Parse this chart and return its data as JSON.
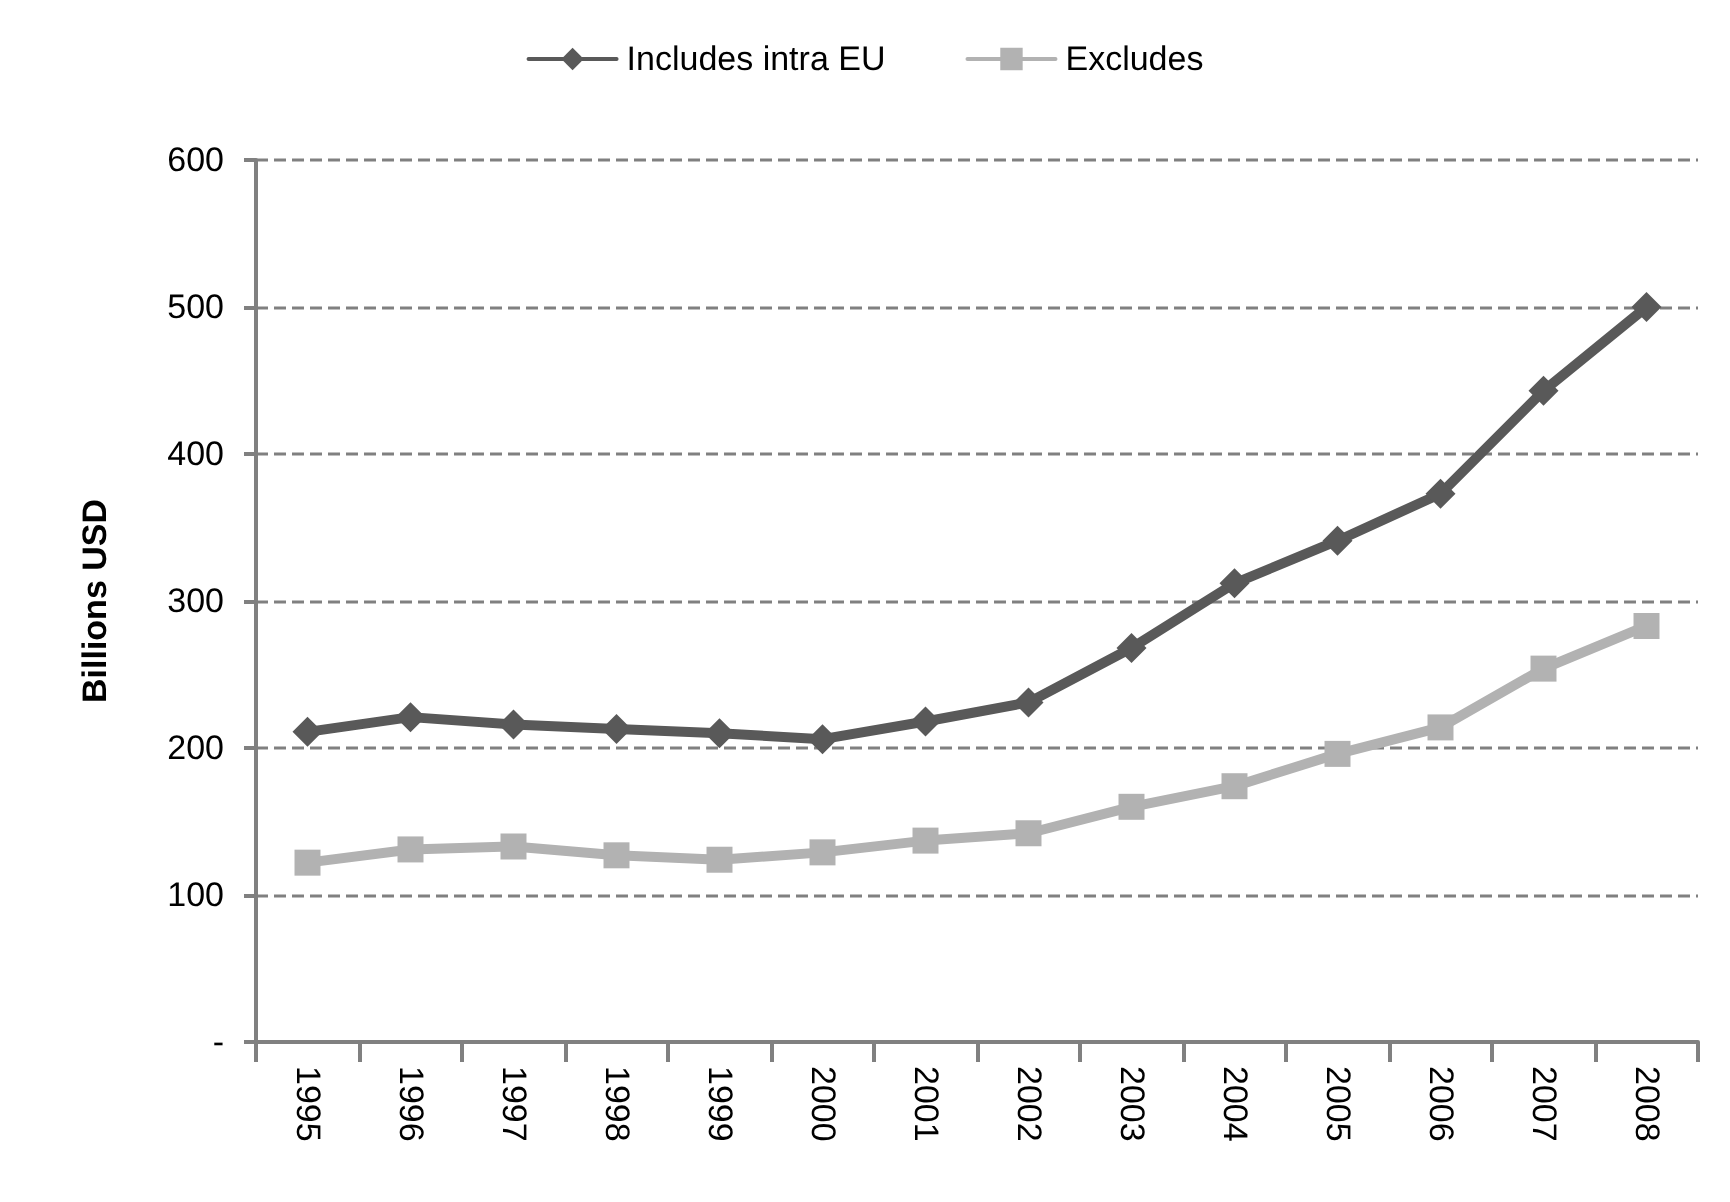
{
  "chart_data": {
    "type": "line",
    "ylabel": "Billions USD",
    "categories": [
      "1995",
      "1996",
      "1997",
      "1998",
      "1999",
      "2000",
      "2001",
      "2002",
      "2003",
      "2004",
      "2005",
      "2006",
      "2007",
      "2008"
    ],
    "series": [
      {
        "name": "Includes intra EU",
        "color": "#595959",
        "marker": "diamond",
        "values": [
          211,
          221,
          216,
          213,
          210,
          206,
          218,
          231,
          268,
          312,
          341,
          373,
          443,
          500
        ]
      },
      {
        "name": "Excludes",
        "color": "#b2b2b2",
        "marker": "square",
        "values": [
          122,
          131,
          133,
          127,
          124,
          129,
          137,
          142,
          160,
          174,
          196,
          214,
          254,
          283
        ]
      }
    ],
    "ylim": [
      0,
      600
    ],
    "yticks": [
      {
        "value": 0,
        "label": "-"
      },
      100,
      200,
      300,
      400,
      500,
      600
    ],
    "grid": "y",
    "legend": "top"
  }
}
